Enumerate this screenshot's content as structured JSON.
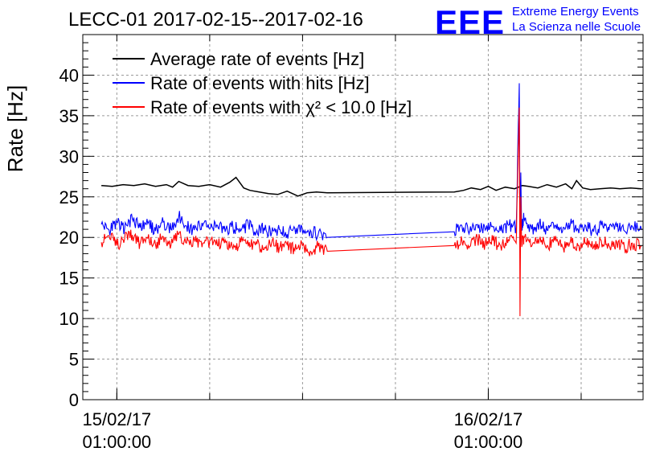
{
  "chart_data": {
    "type": "line",
    "title": "LECC-01 2017-02-15--2017-02-16",
    "ylabel": "Rate [Hz]",
    "xlabel": "",
    "ylim": [
      0,
      45
    ],
    "yticks": [
      0,
      5,
      10,
      15,
      20,
      25,
      30,
      35,
      40
    ],
    "x_unit": "hours since 15/02/17 00:00:00",
    "xlim": [
      -1.2,
      35.0
    ],
    "xtick_labels": [
      {
        "x": 1.0,
        "date": "15/02/17",
        "time": "01:00:00"
      },
      {
        "x": 25.0,
        "date": "16/02/17",
        "time": "01:00:00"
      }
    ],
    "grid": true,
    "legend_position": "top-left",
    "series": [
      {
        "name": "Average rate of events [Hz]",
        "color": "#000000",
        "x": [
          0.0,
          0.7,
          1.4,
          2.1,
          2.8,
          3.5,
          4.2,
          4.6,
          5.0,
          5.6,
          6.3,
          7.0,
          7.7,
          8.3,
          8.7,
          9.2,
          9.6,
          10.2,
          10.8,
          11.4,
          12.0,
          12.7,
          13.3,
          13.9,
          14.6,
          22.8,
          23.4,
          23.9,
          24.5,
          25.0,
          25.5,
          26.1,
          26.7,
          27.2,
          27.6,
          28.2,
          28.8,
          29.4,
          30.0,
          30.4,
          30.7,
          31.1,
          31.6,
          32.2,
          32.9,
          33.5,
          34.2,
          34.9
        ],
        "y": [
          26.4,
          26.3,
          26.5,
          26.4,
          26.6,
          26.3,
          26.5,
          26.2,
          26.9,
          26.4,
          26.3,
          26.5,
          26.2,
          26.8,
          27.4,
          26.1,
          25.8,
          25.6,
          25.4,
          25.3,
          25.7,
          25.1,
          25.5,
          25.6,
          25.5,
          25.6,
          25.8,
          26.1,
          25.9,
          26.3,
          25.8,
          26.2,
          26.0,
          26.4,
          26.3,
          26.1,
          26.5,
          26.2,
          26.6,
          26.0,
          27.0,
          26.1,
          25.9,
          26.0,
          26.1,
          26.0,
          26.1,
          26.0
        ]
      },
      {
        "name": "Rate of events with hits [Hz]",
        "color": "#0000ff",
        "x": [
          0.0,
          0.5,
          1.0,
          1.5,
          2.0,
          2.5,
          3.0,
          3.5,
          4.0,
          4.5,
          5.0,
          5.5,
          6.0,
          6.5,
          7.0,
          7.5,
          8.0,
          8.5,
          9.0,
          9.5,
          10.0,
          10.5,
          11.0,
          11.5,
          12.0,
          12.5,
          13.0,
          13.5,
          14.0,
          14.6,
          22.8,
          23.3,
          23.8,
          24.3,
          24.8,
          25.3,
          25.8,
          26.3,
          26.8,
          27.0,
          27.05,
          27.1,
          27.15,
          27.3,
          27.8,
          28.3,
          28.8,
          29.3,
          29.8,
          30.3,
          30.8,
          31.3,
          31.8,
          32.3,
          32.8,
          33.3,
          33.8,
          34.3,
          34.9
        ],
        "y": [
          21.6,
          20.9,
          21.9,
          21.0,
          22.3,
          21.2,
          21.7,
          20.8,
          21.9,
          21.0,
          22.6,
          21.4,
          20.9,
          21.8,
          21.1,
          21.5,
          20.7,
          21.3,
          20.8,
          21.6,
          20.6,
          21.2,
          20.5,
          21.0,
          20.4,
          21.1,
          20.6,
          20.9,
          20.3,
          20.0,
          20.7,
          21.4,
          20.8,
          21.6,
          20.9,
          21.3,
          20.8,
          21.5,
          21.2,
          39.0,
          21.0,
          28.0,
          21.4,
          22.5,
          21.0,
          21.7,
          20.9,
          21.5,
          20.8,
          21.6,
          21.0,
          21.4,
          20.7,
          21.5,
          20.9,
          21.3,
          20.8,
          21.4,
          20.9
        ]
      },
      {
        "name": "Rate of events with χ² < 10.0 [Hz]",
        "color": "#ff0000",
        "x": [
          0.0,
          0.5,
          1.0,
          1.5,
          2.0,
          2.5,
          3.0,
          3.5,
          4.0,
          4.5,
          5.0,
          5.5,
          6.0,
          6.5,
          7.0,
          7.5,
          8.0,
          8.5,
          9.0,
          9.5,
          10.0,
          10.5,
          11.0,
          11.5,
          12.0,
          12.5,
          13.0,
          13.5,
          14.0,
          14.6,
          22.8,
          23.3,
          23.8,
          24.3,
          24.8,
          25.3,
          25.8,
          26.3,
          26.8,
          27.0,
          27.05,
          27.1,
          27.15,
          27.3,
          27.8,
          28.3,
          28.8,
          29.3,
          29.8,
          30.3,
          30.8,
          31.3,
          31.8,
          32.3,
          32.8,
          33.3,
          33.8,
          34.3,
          34.9
        ],
        "y": [
          19.4,
          20.2,
          19.0,
          19.8,
          20.3,
          19.2,
          19.9,
          19.1,
          20.1,
          19.0,
          20.4,
          19.3,
          19.8,
          18.8,
          19.6,
          19.0,
          19.7,
          18.6,
          19.4,
          18.9,
          19.5,
          18.5,
          19.3,
          18.7,
          19.1,
          18.4,
          19.0,
          18.3,
          18.9,
          18.3,
          19.0,
          19.6,
          18.9,
          19.8,
          19.2,
          19.6,
          18.9,
          19.7,
          19.3,
          36.0,
          10.3,
          25.0,
          19.5,
          19.9,
          18.9,
          19.7,
          19.0,
          19.6,
          18.8,
          19.5,
          19.0,
          19.3,
          18.8,
          19.6,
          19.0,
          19.4,
          18.7,
          19.3,
          18.9
        ]
      }
    ]
  },
  "logo": {
    "mark": "EEE",
    "line1": "Extreme Energy Events",
    "line2": "La Scienza nelle Scuole",
    "color": "#0000ff"
  }
}
